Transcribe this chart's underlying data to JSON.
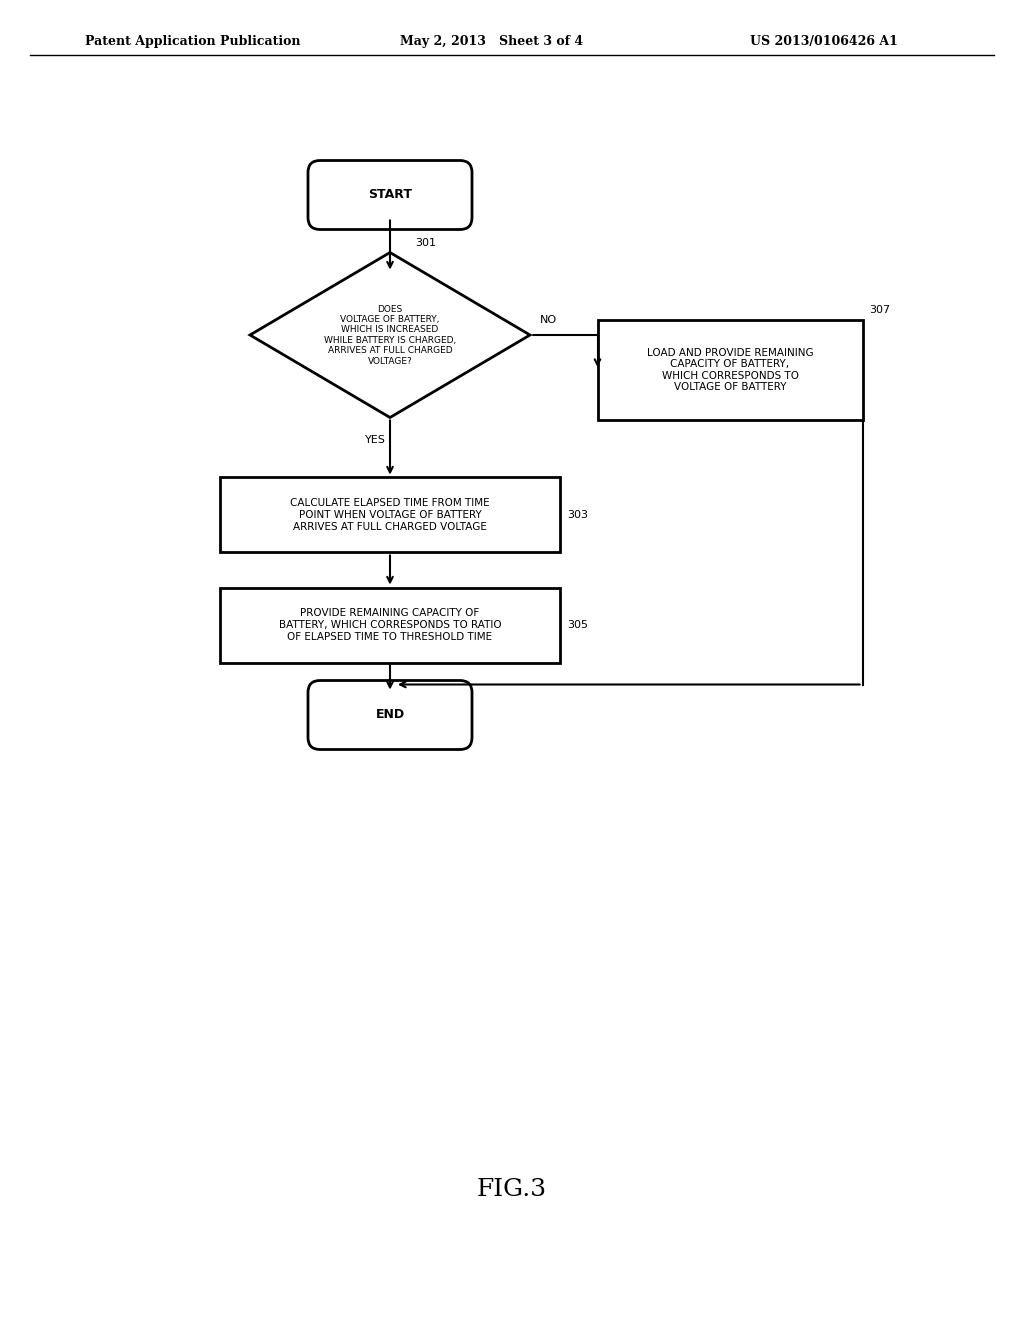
{
  "header_left": "Patent Application Publication",
  "header_mid": "May 2, 2013   Sheet 3 of 4",
  "header_right": "US 2013/0106426 A1",
  "fig_label": "FIG.3",
  "start_label": "START",
  "end_label": "END",
  "diamond_text": "DOES\nVOLTAGE OF BATTERY,\nWHICH IS INCREASED\nWHILE BATTERY IS CHARGED,\nARRIVES AT FULL CHARGED\nVOLTAGE?",
  "diamond_label": "301",
  "box303_text": "CALCULATE ELAPSED TIME FROM TIME\nPOINT WHEN VOLTAGE OF BATTERY\nARRIVES AT FULL CHARGED VOLTAGE",
  "box303_label": "303",
  "box305_text": "PROVIDE REMAINING CAPACITY OF\nBATTERY, WHICH CORRESPONDS TO RATIO\nOF ELAPSED TIME TO THRESHOLD TIME",
  "box305_label": "305",
  "box307_text": "LOAD AND PROVIDE REMAINING\nCAPACITY OF BATTERY,\nWHICH CORRESPONDS TO\nVOLTAGE OF BATTERY",
  "box307_label": "307",
  "yes_label": "YES",
  "no_label": "NO",
  "background_color": "#ffffff",
  "line_color": "#000000",
  "text_color": "#000000",
  "font_size_header": 9,
  "font_size_box": 7.5,
  "font_size_label": 8,
  "font_size_fig": 18
}
